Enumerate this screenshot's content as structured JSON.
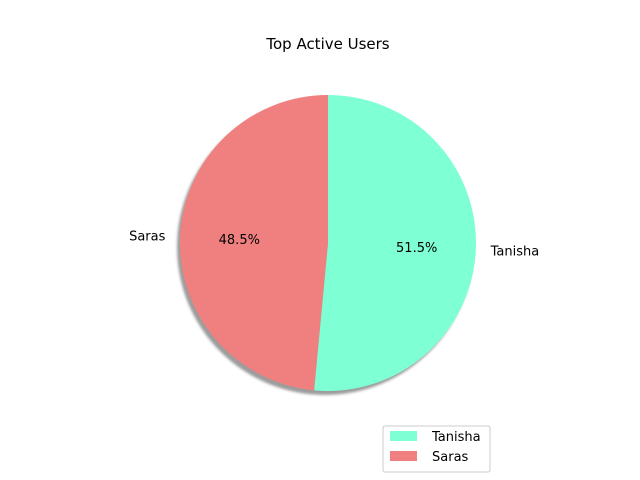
{
  "chart_data": {
    "type": "pie",
    "title": "Top Active Users",
    "labels": [
      "Tanisha",
      "Saras"
    ],
    "values": [
      51.5,
      48.5
    ],
    "percent_labels": [
      "51.5%",
      "48.5%"
    ],
    "colors": [
      "#7fffd4",
      "#f08080"
    ],
    "shadow": true,
    "start_angle": 90,
    "direction": "clockwise",
    "legend": {
      "placement": "lower-right",
      "entries": [
        "Tanisha",
        "Saras"
      ]
    }
  }
}
